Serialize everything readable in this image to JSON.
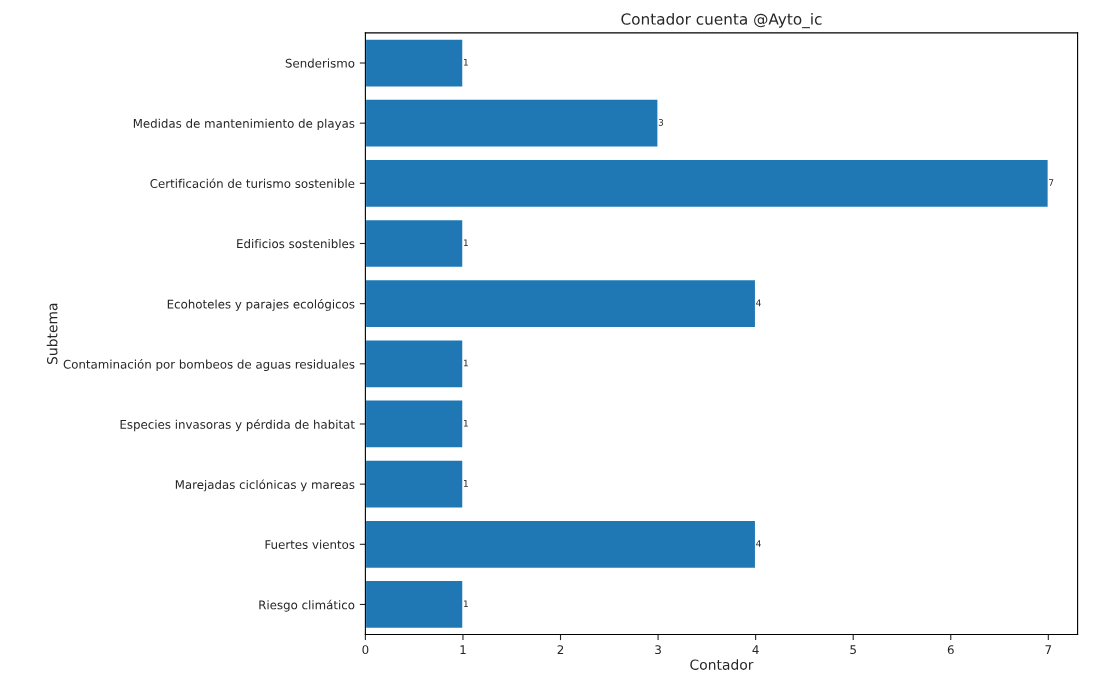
{
  "chart_data": {
    "type": "bar",
    "orientation": "horizontal",
    "title": "Contador cuenta @Ayto_ic",
    "xlabel": "Contador",
    "ylabel": "Subtema",
    "categories": [
      "Senderismo",
      "Medidas de mantenimiento de playas",
      "Certificación de turismo sostenible",
      "Edificios sostenibles",
      "Ecohoteles y parajes ecológicos",
      "Contaminación por bombeos de aguas residuales",
      "Especies invasoras y pérdida de habitat",
      "Marejadas ciclónicas y mareas",
      "Fuertes vientos",
      "Riesgo climático"
    ],
    "values": [
      1,
      3,
      7,
      1,
      4,
      1,
      1,
      1,
      4,
      1
    ],
    "color": "#1f77b4",
    "data_labels": true,
    "grid": false,
    "xlim": [
      0,
      7.3
    ],
    "xticks": [
      0,
      1,
      2,
      3,
      4,
      5,
      6,
      7
    ]
  }
}
